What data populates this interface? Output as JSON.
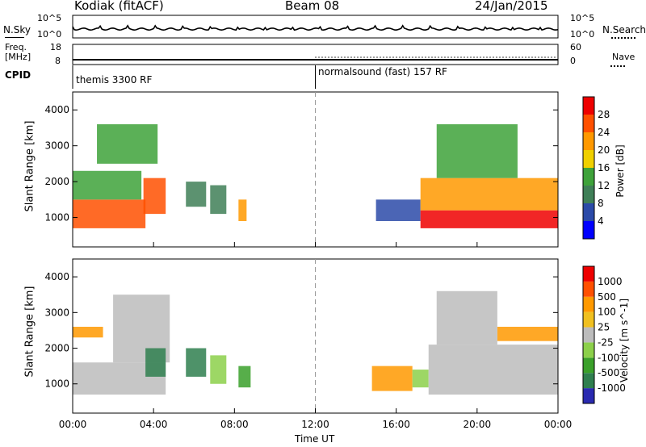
{
  "header": {
    "radar": "Kodiak (fitACF)",
    "beam": "Beam 08",
    "date": "24/Jan/2015"
  },
  "noise_panel": {
    "left_label": "N.Sky",
    "right_label": "N.Search",
    "left_ticks": [
      "10^5",
      "10^0"
    ],
    "right_ticks": [
      "10^5",
      "10^0"
    ]
  },
  "freq_panel": {
    "left_label_line1": "Freq.",
    "left_label_line2": "[MHz]",
    "right_label": "Nave",
    "left_ticks": [
      "18",
      "8"
    ],
    "right_ticks": [
      "60",
      "0"
    ]
  },
  "cpid_panel": {
    "label": "CPID",
    "segments": [
      {
        "name": "themis 3300 RF",
        "start": "00:00"
      },
      {
        "name": "normalsound (fast) 157 RF",
        "start": "12:00"
      }
    ]
  },
  "colors": {
    "ground_scatter": "#bcbcbc",
    "power_scale": [
      "#0000ff",
      "#2b4aa8",
      "#3f7f57",
      "#3ea23a",
      "#f0d000",
      "#ff9900",
      "#ff5000",
      "#ee0000"
    ],
    "velocity_scale": [
      "#2a2ab0",
      "#2f7f4f",
      "#3aa02a",
      "#8cd04a",
      "#c8c8c8",
      "#f0c020",
      "#ff9900",
      "#ff5000",
      "#ee0000"
    ]
  },
  "chart_data": [
    {
      "type": "heatmap",
      "name": "power",
      "ylabel": "Slant Range [km]",
      "ylim": [
        180,
        4500
      ],
      "yticks": [
        "1000",
        "2000",
        "3000",
        "4000"
      ],
      "xticks": [
        "00:00",
        "04:00",
        "08:00",
        "12:00",
        "16:00",
        "20:00",
        "00:00"
      ],
      "colorbar_label": "Power [dB]",
      "colorbar_ticks": [
        "4",
        "8",
        "12",
        "16",
        "20",
        "24",
        "28"
      ],
      "regions": [
        {
          "t0": 0.0,
          "t1": 3.6,
          "r0": 700,
          "r1": 1500,
          "level": 6
        },
        {
          "t0": 0.0,
          "t1": 3.4,
          "r0": 1500,
          "r1": 2300,
          "level": 3
        },
        {
          "t0": 3.5,
          "t1": 4.6,
          "r0": 1100,
          "r1": 2100,
          "level": 6
        },
        {
          "t0": 1.2,
          "t1": 4.2,
          "r0": 2500,
          "r1": 3600,
          "level": 3
        },
        {
          "t0": 5.6,
          "t1": 6.6,
          "r0": 1300,
          "r1": 2000,
          "level": 2
        },
        {
          "t0": 6.8,
          "t1": 7.6,
          "r0": 1100,
          "r1": 1900,
          "level": 2
        },
        {
          "t0": 8.2,
          "t1": 8.6,
          "r0": 900,
          "r1": 1500,
          "level": 5
        },
        {
          "t0": 15.0,
          "t1": 17.2,
          "r0": 900,
          "r1": 1500,
          "level": 1
        },
        {
          "t0": 17.2,
          "t1": 24.0,
          "r0": 700,
          "r1": 1200,
          "level": 7
        },
        {
          "t0": 17.2,
          "t1": 24.0,
          "r0": 1200,
          "r1": 2100,
          "level": 5
        },
        {
          "t0": 18.0,
          "t1": 22.0,
          "r0": 2100,
          "r1": 3600,
          "level": 3
        }
      ]
    },
    {
      "type": "heatmap",
      "name": "velocity",
      "ylabel": "Slant Range [km]",
      "ylim": [
        180,
        4500
      ],
      "yticks": [
        "1000",
        "2000",
        "3000",
        "4000"
      ],
      "xticks": [
        "00:00",
        "04:00",
        "08:00",
        "12:00",
        "16:00",
        "20:00",
        "00:00"
      ],
      "xlabel": "Time UT",
      "colorbar_label": "Velocity [m s^-1]",
      "colorbar_ticks": [
        "1000",
        "500",
        "100",
        "25",
        "-25",
        "-100",
        "-500",
        "-1000"
      ],
      "regions": [
        {
          "t0": 0.0,
          "t1": 4.6,
          "r0": 700,
          "r1": 1600,
          "level": 4
        },
        {
          "t0": 2.0,
          "t1": 4.8,
          "r0": 1600,
          "r1": 3500,
          "level": 4
        },
        {
          "t0": 0.0,
          "t1": 1.5,
          "r0": 2300,
          "r1": 2600,
          "level": 6
        },
        {
          "t0": 3.6,
          "t1": 4.6,
          "r0": 1200,
          "r1": 2000,
          "level": 1
        },
        {
          "t0": 5.6,
          "t1": 6.6,
          "r0": 1200,
          "r1": 2000,
          "level": 1
        },
        {
          "t0": 6.8,
          "t1": 7.6,
          "r0": 1000,
          "r1": 1800,
          "level": 3
        },
        {
          "t0": 8.2,
          "t1": 8.8,
          "r0": 900,
          "r1": 1500,
          "level": 2
        },
        {
          "t0": 14.8,
          "t1": 16.8,
          "r0": 800,
          "r1": 1500,
          "level": 6
        },
        {
          "t0": 16.8,
          "t1": 17.6,
          "r0": 900,
          "r1": 1400,
          "level": 3
        },
        {
          "t0": 17.6,
          "t1": 24.0,
          "r0": 700,
          "r1": 2100,
          "level": 4
        },
        {
          "t0": 21.0,
          "t1": 24.0,
          "r0": 2200,
          "r1": 2600,
          "level": 6
        },
        {
          "t0": 18.0,
          "t1": 21.0,
          "r0": 2100,
          "r1": 3600,
          "level": 4
        }
      ]
    }
  ]
}
